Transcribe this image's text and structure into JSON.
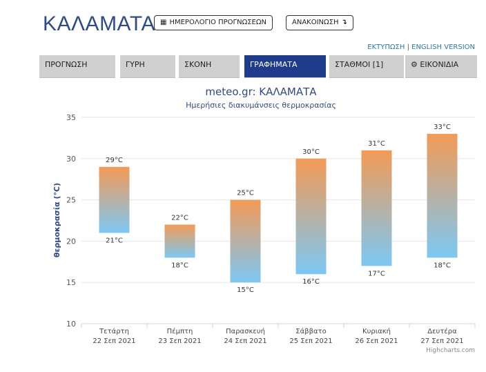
{
  "header": {
    "city": "ΚΑΛΑΜΑΤΑ",
    "calendar_button": "ΗΜΕΡΟΛΟΓΙΟ ΠΡΟΓΝΩΣΕΩΝ",
    "announcement_button": "ΑΝΑΚΟΙΝΩΣΗ",
    "print_link": "ΕΚΤΥΠΩΣΗ",
    "separator": "|",
    "english_link": "ENGLISH VERSION"
  },
  "tabs": [
    {
      "label": "ΠΡΟΓΝΩΣΗ"
    },
    {
      "label": "ΓΥΡΗ"
    },
    {
      "label": "ΣΚΟΝΗ"
    },
    {
      "label": "ΓΡΑΦΗΜΑΤΑ"
    },
    {
      "label": "ΣΤΑΘΜΟΙ [1]"
    },
    {
      "label": "ΕΙΚΟΝΙΔΙΑ"
    }
  ],
  "colors": {
    "accent": "#1f3c8c",
    "bar_top": "#f39a55",
    "bar_bottom": "#7cc8f4",
    "title": "#2d4a8a"
  },
  "icons": {
    "calendar": "calendar-icon",
    "announcement": "arrow-icon",
    "images": "gear-icon"
  },
  "credit": "Highcharts.com",
  "chart_data": {
    "type": "bar",
    "title": "meteo.gr: ΚΑΛΑΜΑΤΑ",
    "subtitle": "Ημερήσιες διακυμάνσεις θερμοκρασίας",
    "ylabel": "θερμοκρασία (°C)",
    "ylim": [
      10,
      35
    ],
    "yticks": [
      10,
      15,
      20,
      25,
      30,
      35
    ],
    "unit": "°C",
    "categories": [
      {
        "day": "Τετάρτη",
        "date": "22 Σεπ 2021"
      },
      {
        "day": "Πέμπτη",
        "date": "23 Σεπ 2021"
      },
      {
        "day": "Παρασκευή",
        "date": "24 Σεπ 2021"
      },
      {
        "day": "Σάββατο",
        "date": "25 Σεπ 2021"
      },
      {
        "day": "Κυριακή",
        "date": "26 Σεπ 2021"
      },
      {
        "day": "Δευτέρα",
        "date": "27 Σεπ 2021"
      }
    ],
    "low": [
      21,
      18,
      15,
      16,
      17,
      18
    ],
    "high": [
      29,
      22,
      25,
      30,
      31,
      33
    ],
    "grid": true
  }
}
